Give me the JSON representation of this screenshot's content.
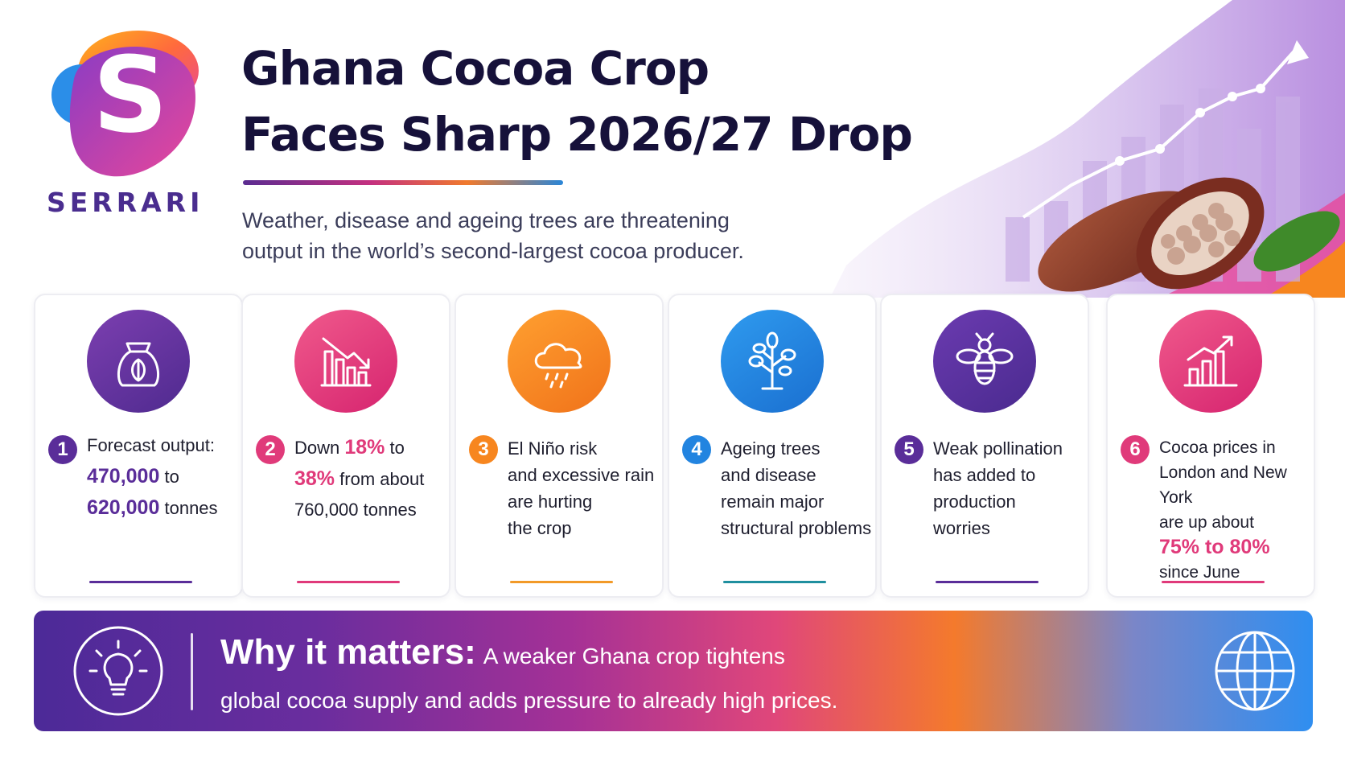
{
  "brand": {
    "name": "SERRARI",
    "logo_letter": "S"
  },
  "header": {
    "title_line1": "Ghana Cocoa Crop",
    "title_line2": "Faces Sharp 2026/27 Drop",
    "subtitle_line1": "Weather, disease and ageing trees are threatening",
    "subtitle_line2": "output in the world’s second-largest cocoa producer."
  },
  "colors": {
    "purple": "#5a2d99",
    "pink": "#e03a7a",
    "orange": "#f7861f",
    "blue": "#2284e0",
    "navy": "#16113a"
  },
  "cards": [
    {
      "number": "1",
      "icon": "cocoa-sack-icon",
      "parts": [
        "Forecast output:",
        "470,000",
        " to",
        "620,000",
        " tonnes"
      ]
    },
    {
      "number": "2",
      "icon": "declining-bar-chart-icon",
      "parts": [
        "Down ",
        "18%",
        " to",
        "38%",
        " from about",
        "760,000 tonnes"
      ]
    },
    {
      "number": "3",
      "icon": "rain-cloud-icon",
      "lines": [
        "El Niño risk",
        "and excessive rain",
        "are hurting",
        "the crop"
      ]
    },
    {
      "number": "4",
      "icon": "tree-icon",
      "lines": [
        "Ageing trees",
        "and disease",
        "remain major",
        "structural problems"
      ]
    },
    {
      "number": "5",
      "icon": "bee-icon",
      "lines": [
        "Weak pollination",
        "has added to",
        "production",
        "worries"
      ]
    },
    {
      "number": "6",
      "icon": "rising-bar-chart-icon",
      "lines": [
        "Cocoa prices in",
        "London and New York",
        "are up about",
        "75% to 80%",
        "since June"
      ]
    }
  ],
  "banner": {
    "lead": "Why it matters:",
    "line1": "A weaker Ghana crop tightens",
    "line2": "global cocoa supply and adds pressure to already high prices.",
    "left_icon": "lightbulb-icon",
    "right_icon": "globe-icon"
  }
}
